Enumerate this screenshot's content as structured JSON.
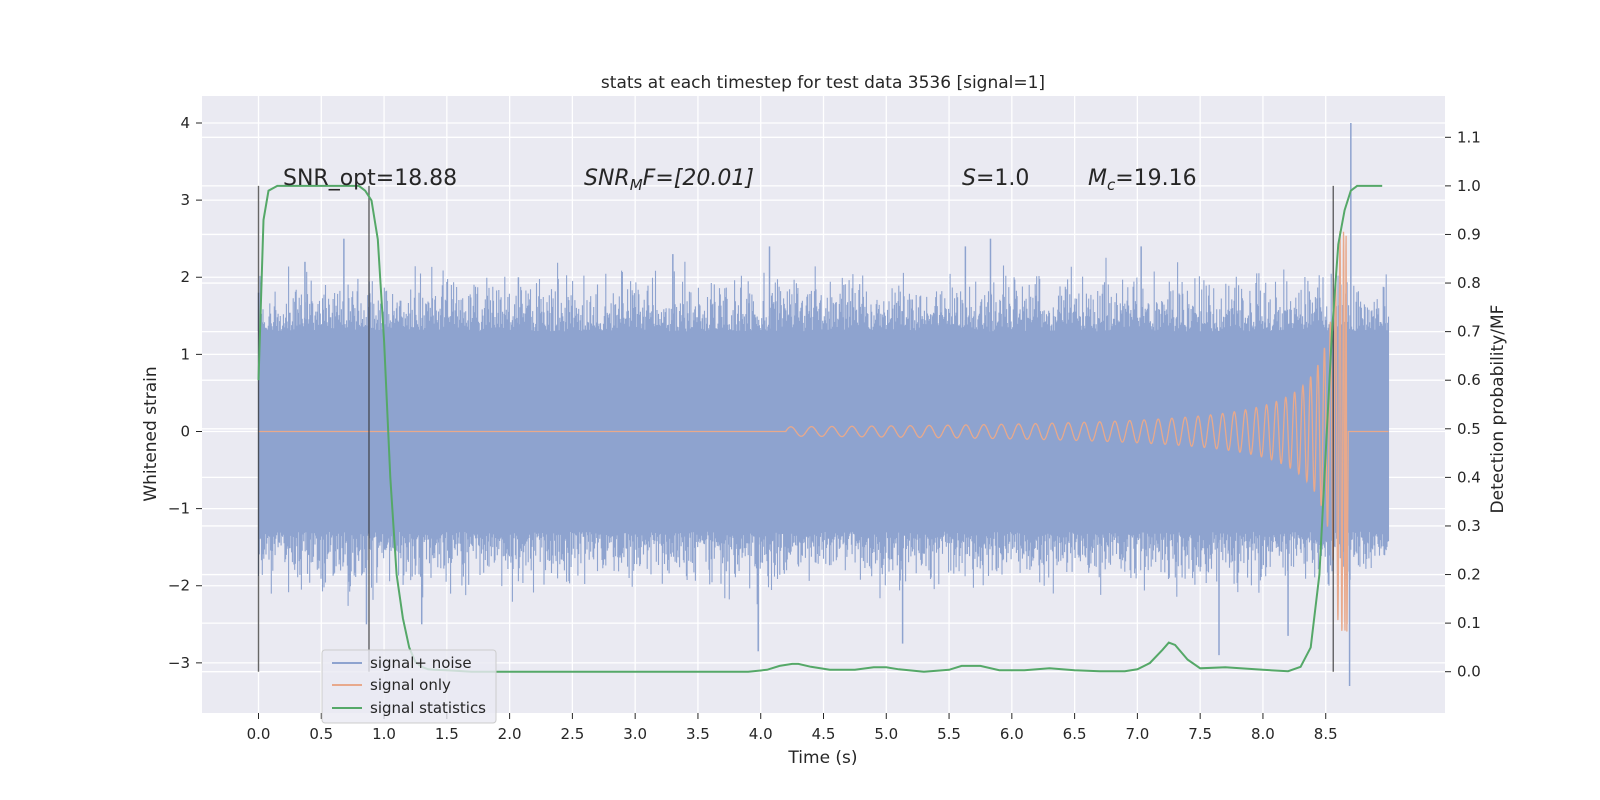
{
  "chart_data": {
    "type": "line",
    "title": "stats at each timestep for test data 3536 [signal=1]",
    "xlabel": "Time (s)",
    "ylabel": "Whitened strain",
    "y2label": "Detection probability/MF",
    "xlim": [
      -0.45,
      9.45
    ],
    "ylim": [
      -3.65,
      4.35
    ],
    "y2lim": [
      -0.085,
      1.185
    ],
    "xticks": [
      "0.0",
      "0.5",
      "1.0",
      "1.5",
      "2.0",
      "2.5",
      "3.0",
      "3.5",
      "4.0",
      "4.5",
      "5.0",
      "5.5",
      "6.0",
      "6.5",
      "7.0",
      "7.5",
      "8.0",
      "8.5"
    ],
    "yticks": [
      "−3",
      "−2",
      "−1",
      "0",
      "1",
      "2",
      "3",
      "4"
    ],
    "y2ticks": [
      "0.0",
      "0.1",
      "0.2",
      "0.3",
      "0.4",
      "0.5",
      "0.6",
      "0.7",
      "0.8",
      "0.9",
      "1.0",
      "1.1"
    ],
    "grid": true,
    "legend_position": "bottom-left",
    "annotations": {
      "snr_opt": "SNR_opt=18.88",
      "snr_mf_main": "SNR",
      "snr_mf_sub": "M",
      "snr_mf_rest": "F=[20.01]",
      "s_var": "S",
      "s_rest": "=1.0",
      "mc_var": "M",
      "mc_sub": "c",
      "mc_rest": "=19.16"
    },
    "vertical_lines": [
      0.0,
      0.88,
      8.56
    ],
    "series": [
      {
        "name": "signal+ noise",
        "color": "#8ea3cf",
        "axis": "left",
        "x_range": [
          0.0,
          9.0
        ],
        "typical_envelope": [
          -1.3,
          1.3
        ],
        "peaks": [
          [
            0.0,
            1.8
          ],
          [
            0.37,
            2.2
          ],
          [
            0.68,
            2.5
          ],
          [
            0.86,
            -2.5
          ],
          [
            1.3,
            -2.5
          ],
          [
            2.07,
            2.0
          ],
          [
            3.3,
            2.3
          ],
          [
            3.98,
            -2.85
          ],
          [
            4.07,
            2.4
          ],
          [
            5.13,
            -2.75
          ],
          [
            5.63,
            2.4
          ],
          [
            5.83,
            2.5
          ],
          [
            7.03,
            2.4
          ],
          [
            7.65,
            -2.9
          ],
          [
            8.2,
            -2.65
          ],
          [
            8.7,
            4.0
          ],
          [
            8.69,
            -3.3
          ]
        ]
      },
      {
        "name": "signal only",
        "color": "#e8a98c",
        "axis": "left",
        "chirp_start": 4.2,
        "merger_time": 8.67,
        "peak_amplitude": 2.6
      },
      {
        "name": "signal statistics",
        "color": "#55a868",
        "axis": "right",
        "x": [
          0.0,
          0.04,
          0.08,
          0.15,
          0.22,
          0.3,
          0.4,
          0.5,
          0.6,
          0.7,
          0.8,
          0.85,
          0.9,
          0.95,
          1.0,
          1.05,
          1.1,
          1.15,
          1.2,
          1.25,
          1.3,
          1.35,
          1.4,
          1.5,
          1.7,
          2.0,
          2.5,
          3.0,
          3.5,
          3.9,
          4.05,
          4.15,
          4.25,
          4.3,
          4.4,
          4.55,
          4.75,
          4.9,
          5.0,
          5.1,
          5.3,
          5.5,
          5.6,
          5.75,
          5.9,
          6.1,
          6.3,
          6.5,
          6.7,
          6.9,
          7.0,
          7.1,
          7.2,
          7.25,
          7.3,
          7.4,
          7.5,
          7.7,
          8.0,
          8.2,
          8.3,
          8.38,
          8.45,
          8.5,
          8.55,
          8.6,
          8.65,
          8.7,
          8.75,
          8.8,
          8.85,
          8.95
        ],
        "y": [
          0.6,
          0.93,
          0.99,
          1.0,
          1.0,
          1.0,
          1.0,
          1.0,
          1.0,
          1.0,
          1.0,
          0.99,
          0.97,
          0.89,
          0.68,
          0.4,
          0.2,
          0.11,
          0.05,
          0.02,
          0.01,
          0.005,
          0.004,
          0.003,
          0.0,
          0.0,
          0.0,
          0.0,
          0.0,
          0.0,
          0.004,
          0.012,
          0.016,
          0.016,
          0.01,
          0.004,
          0.004,
          0.009,
          0.009,
          0.005,
          0.0,
          0.004,
          0.012,
          0.012,
          0.003,
          0.003,
          0.007,
          0.003,
          0.001,
          0.001,
          0.005,
          0.018,
          0.045,
          0.06,
          0.055,
          0.025,
          0.007,
          0.009,
          0.004,
          0.001,
          0.01,
          0.05,
          0.2,
          0.45,
          0.7,
          0.88,
          0.95,
          0.99,
          1.0,
          1.0,
          1.0,
          1.0
        ]
      }
    ]
  }
}
